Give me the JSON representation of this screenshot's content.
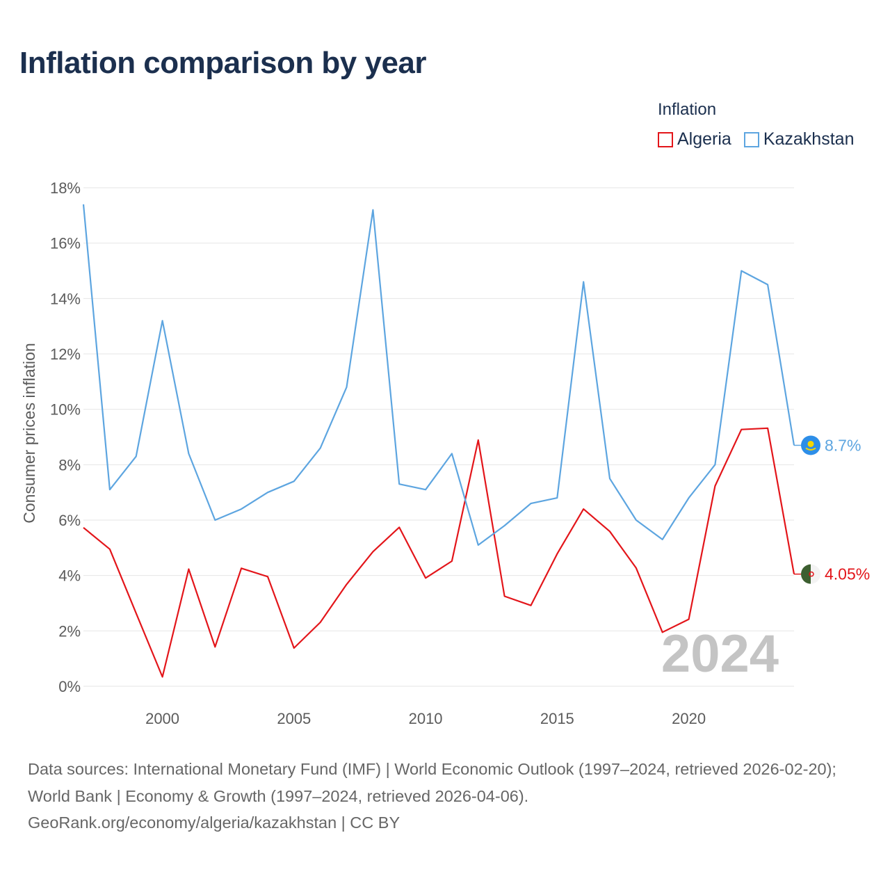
{
  "title": "Inflation comparison by year",
  "legend": {
    "title": "Inflation",
    "items": [
      {
        "label": "Algeria",
        "color": "#e3151a"
      },
      {
        "label": "Kazakhstan",
        "color": "#5da5e0"
      }
    ]
  },
  "chart_data": {
    "type": "line",
    "title": "Inflation comparison by year",
    "xlabel": "",
    "ylabel": "Consumer prices inflation",
    "xlim": [
      1997,
      2024
    ],
    "ylim": [
      0,
      18
    ],
    "x_ticks": [
      2000,
      2005,
      2010,
      2015,
      2020
    ],
    "y_ticks": [
      0,
      2,
      4,
      6,
      8,
      10,
      12,
      14,
      16,
      18
    ],
    "y_tick_labels": [
      "0%",
      "2%",
      "4%",
      "6%",
      "8%",
      "10%",
      "12%",
      "14%",
      "16%",
      "18%"
    ],
    "grid": true,
    "legend_position": "top-right",
    "year_watermark": "2024",
    "x": [
      1997,
      1998,
      1999,
      2000,
      2001,
      2002,
      2003,
      2004,
      2005,
      2006,
      2007,
      2008,
      2009,
      2010,
      2011,
      2012,
      2013,
      2014,
      2015,
      2016,
      2017,
      2018,
      2019,
      2020,
      2021,
      2022,
      2023,
      2024
    ],
    "series": [
      {
        "name": "Algeria",
        "color": "#e3151a",
        "end_label": "4.05%",
        "flag_icon": "algeria-flag-icon",
        "values": [
          5.73,
          4.95,
          2.64,
          0.34,
          4.23,
          1.42,
          4.26,
          3.96,
          1.38,
          2.31,
          3.68,
          4.86,
          5.74,
          3.91,
          4.52,
          8.89,
          3.25,
          2.92,
          4.78,
          6.4,
          5.59,
          4.27,
          1.95,
          2.42,
          7.23,
          9.27,
          9.32,
          4.05
        ]
      },
      {
        "name": "Kazakhstan",
        "color": "#5da5e0",
        "end_label": "8.7%",
        "flag_icon": "kazakhstan-flag-icon",
        "values": [
          17.4,
          7.1,
          8.3,
          13.2,
          8.4,
          6.0,
          6.4,
          7.0,
          7.4,
          8.6,
          10.8,
          17.2,
          7.3,
          7.1,
          8.4,
          5.1,
          5.8,
          6.6,
          6.8,
          14.6,
          7.5,
          6.0,
          5.3,
          6.8,
          8.0,
          15.0,
          14.5,
          8.7
        ]
      }
    ]
  },
  "sources": {
    "line1": "Data sources: International Monetary Fund (IMF) | World Economic Outlook (1997–2024, retrieved 2026-02-20); World Bank | Economy & Growth (1997–2024, retrieved 2026-04-06).",
    "line2": "GeoRank.org/economy/algeria/kazakhstan | CC BY"
  }
}
